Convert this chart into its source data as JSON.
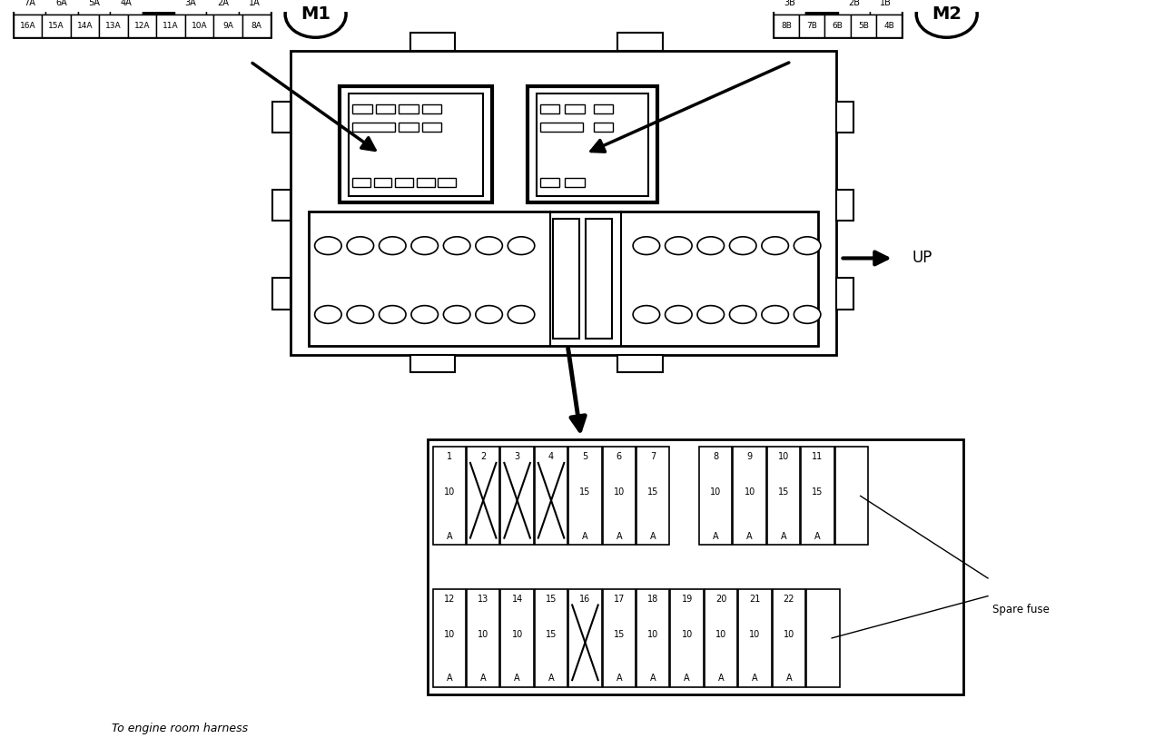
{
  "bg_color": "#ffffff",
  "line_color": "#000000",
  "m1_label": "M1",
  "m2_label": "M2",
  "up_label": "UP",
  "spare_fuse_label": "Spare fuse",
  "bottom_label": "To engine room harness",
  "m1_top_row": [
    "7A",
    "6A",
    "5A",
    "4A",
    "",
    "3A",
    "2A",
    "1A"
  ],
  "m1_bot_row": [
    "16A",
    "15A",
    "14A",
    "13A",
    "12A",
    "11A",
    "10A",
    "9A",
    "8A"
  ],
  "m2_top_row": [
    "3B",
    "",
    "2B",
    "1B"
  ],
  "m2_bot_row": [
    "8B",
    "7B",
    "6B",
    "5B",
    "4B"
  ],
  "fuse_row1": [
    {
      "num": "1",
      "val": "10",
      "unit": "A",
      "x_blank": false
    },
    {
      "num": "2",
      "val": "",
      "unit": "",
      "x_blank": true
    },
    {
      "num": "3",
      "val": "",
      "unit": "",
      "x_blank": true
    },
    {
      "num": "4",
      "val": "",
      "unit": "",
      "x_blank": true
    },
    {
      "num": "5",
      "val": "15",
      "unit": "A",
      "x_blank": false
    },
    {
      "num": "6",
      "val": "10",
      "unit": "A",
      "x_blank": false
    },
    {
      "num": "7",
      "val": "15",
      "unit": "A",
      "x_blank": false
    },
    {
      "num": "8",
      "val": "10",
      "unit": "A",
      "x_blank": false
    },
    {
      "num": "9",
      "val": "10",
      "unit": "A",
      "x_blank": false
    },
    {
      "num": "10",
      "val": "15",
      "unit": "A",
      "x_blank": false
    },
    {
      "num": "11",
      "val": "15",
      "unit": "A",
      "x_blank": false
    }
  ],
  "fuse_row2": [
    {
      "num": "12",
      "val": "10",
      "unit": "A",
      "x_blank": false
    },
    {
      "num": "13",
      "val": "10",
      "unit": "A",
      "x_blank": false
    },
    {
      "num": "14",
      "val": "10",
      "unit": "A",
      "x_blank": false
    },
    {
      "num": "15",
      "val": "15",
      "unit": "A",
      "x_blank": false
    },
    {
      "num": "16",
      "val": "",
      "unit": "",
      "x_blank": true
    },
    {
      "num": "17",
      "val": "15",
      "unit": "A",
      "x_blank": false
    },
    {
      "num": "18",
      "val": "10",
      "unit": "A",
      "x_blank": false
    },
    {
      "num": "19",
      "val": "10",
      "unit": "A",
      "x_blank": false
    },
    {
      "num": "20",
      "val": "10",
      "unit": "A",
      "x_blank": false
    },
    {
      "num": "21",
      "val": "10",
      "unit": "A",
      "x_blank": false
    },
    {
      "num": "22",
      "val": "10",
      "unit": "A",
      "x_blank": false
    }
  ]
}
